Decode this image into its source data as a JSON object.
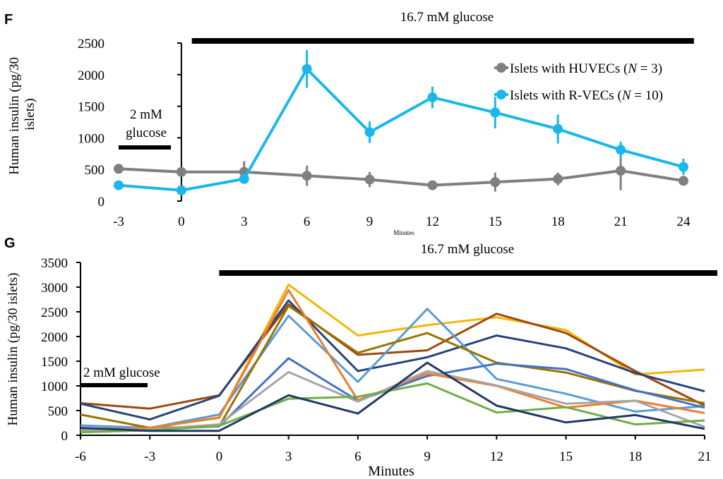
{
  "panels": [
    {
      "label": "F"
    },
    {
      "label": "G"
    }
  ],
  "chart_data": [
    {
      "panel": "F",
      "type": "line",
      "xlabel": "Minutes",
      "ylabel": "Human insulin (pg/30 islets)",
      "x": [
        -3,
        0,
        3,
        6,
        9,
        12,
        15,
        18,
        21,
        24
      ],
      "x_ticks": [
        "-3",
        "0",
        "3",
        "6",
        "9",
        "12",
        "15",
        "18",
        "21",
        "24"
      ],
      "ylim": [
        0,
        2500
      ],
      "y_ticks": [
        "0",
        "500",
        "1000",
        "1500",
        "2000",
        "2500"
      ],
      "legend": {
        "position": "top-right"
      },
      "series": [
        {
          "name": "Islets with HUVECs (N = 3)",
          "label_prefix": "Islets with HUVECs (",
          "label_italic": "N",
          "label_suffix": " = 3)",
          "color": "#7f7f7f",
          "values": [
            510,
            460,
            460,
            400,
            340,
            250,
            300,
            350,
            480,
            320
          ],
          "errors": [
            40,
            20,
            170,
            160,
            120,
            10,
            150,
            100,
            310,
            60
          ]
        },
        {
          "name": "Islets with R-VECs (N = 10)",
          "label_prefix": "Islets with R-VECs (",
          "label_italic": "N",
          "label_suffix": " = 10)",
          "color": "#1ab7ea",
          "values": [
            250,
            170,
            350,
            2090,
            1090,
            1640,
            1400,
            1140,
            810,
            540
          ],
          "errors": [
            30,
            30,
            40,
            300,
            170,
            170,
            250,
            230,
            130,
            130
          ]
        }
      ],
      "annotations": [
        {
          "text": "16.7 mM glucose",
          "span": [
            0.5,
            24.5
          ]
        },
        {
          "text": "2 mM glucose",
          "lines": [
            "2 mM",
            "glucose"
          ],
          "span": [
            -3,
            -0.5
          ]
        }
      ]
    },
    {
      "panel": "G",
      "type": "line",
      "xlabel": "Minutes",
      "ylabel": "Human insulin (pg/30 islets)",
      "x": [
        -6,
        -3,
        0,
        3,
        6,
        9,
        12,
        15,
        18,
        21
      ],
      "x_ticks": [
        "-6",
        "-3",
        "0",
        "3",
        "6",
        "9",
        "12",
        "15",
        "18",
        "21"
      ],
      "ylim": [
        0,
        3500
      ],
      "y_ticks": [
        "0",
        "500",
        "1000",
        "1500",
        "2000",
        "2500",
        "3000",
        "3500"
      ],
      "series": [
        {
          "color": "#f2b705",
          "values": [
            130,
            150,
            350,
            3050,
            2020,
            2230,
            2390,
            2130,
            1230,
            1330
          ]
        },
        {
          "color": "#9e480e",
          "values": [
            650,
            540,
            810,
            2650,
            1630,
            1720,
            2460,
            2070,
            1300,
            600
          ]
        },
        {
          "color": "#264478",
          "values": [
            640,
            320,
            800,
            2730,
            1300,
            1580,
            2020,
            1760,
            1260,
            890
          ]
        },
        {
          "color": "#5b9bd5",
          "values": [
            200,
            150,
            420,
            2420,
            1080,
            2560,
            1140,
            840,
            480,
            590
          ]
        },
        {
          "color": "#997300",
          "values": [
            420,
            150,
            180,
            2620,
            1670,
            2070,
            1470,
            1270,
            900,
            650
          ]
        },
        {
          "color": "#4472c4",
          "values": [
            130,
            120,
            180,
            1560,
            700,
            1200,
            1450,
            1340,
            910,
            560
          ]
        },
        {
          "color": "#ed7d31",
          "values": [
            80,
            150,
            360,
            2940,
            710,
            1250,
            1000,
            560,
            700,
            450
          ]
        },
        {
          "color": "#a5a5a5",
          "values": [
            100,
            120,
            220,
            1280,
            680,
            1300,
            1010,
            640,
            700,
            170
          ]
        },
        {
          "color": "#70ad47",
          "values": [
            60,
            100,
            190,
            740,
            780,
            1050,
            460,
            570,
            220,
            300
          ]
        },
        {
          "color": "#203864",
          "values": [
            150,
            90,
            90,
            810,
            440,
            1470,
            600,
            260,
            410,
            130
          ]
        }
      ],
      "annotations": [
        {
          "text": "16.7 mM glucose",
          "span": [
            0,
            21.5
          ]
        },
        {
          "text": "2 mM glucose",
          "span": [
            -6,
            -2
          ]
        }
      ]
    }
  ]
}
